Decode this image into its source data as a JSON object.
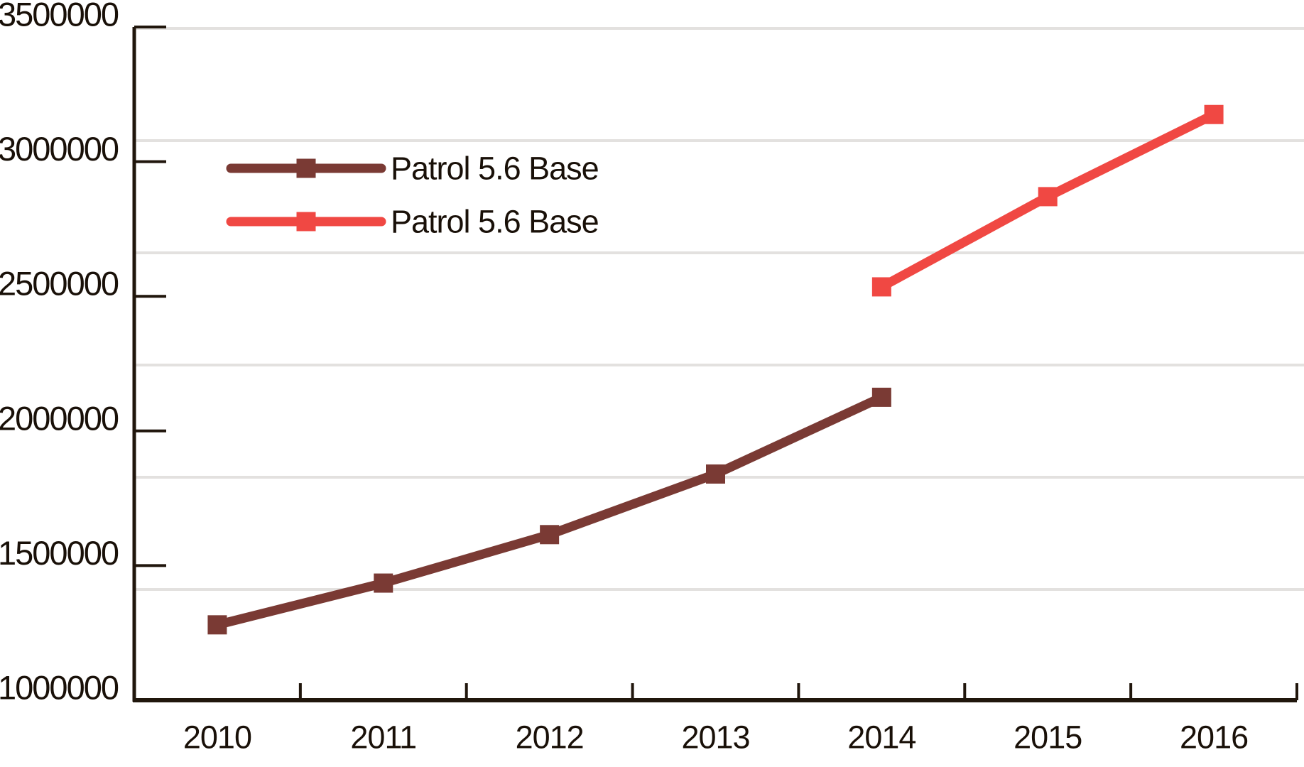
{
  "chart_data": {
    "type": "line",
    "title": "",
    "xlabel": "",
    "ylabel": "",
    "categories": [
      "2010",
      "2011",
      "2012",
      "2013",
      "2014",
      "2015",
      "2016"
    ],
    "y_axis": {
      "min": 1000000,
      "max": 3500000,
      "tick_interval": 500000,
      "tick_labels": [
        "3500000",
        "3000000",
        "2500000",
        "2000000",
        "1500000",
        "1000000"
      ]
    },
    "grid": {
      "horizontal_divisions": 6,
      "color": "#e3e1df"
    },
    "axis_color": "#20160c",
    "x_tick_style": "category-boundaries",
    "series": [
      {
        "name": "Patrol 5.6 Base",
        "color": "#7a3a34",
        "marker": "square",
        "points": [
          {
            "x": "2010",
            "y": 1280000
          },
          {
            "x": "2011",
            "y": 1435000
          },
          {
            "x": "2012",
            "y": 1615000
          },
          {
            "x": "2013",
            "y": 1840000
          },
          {
            "x": "2014",
            "y": 2125000
          }
        ]
      },
      {
        "name": "Patrol 5.6 Base",
        "color": "#f04843",
        "marker": "square",
        "points": [
          {
            "x": "2014",
            "y": 2535000
          },
          {
            "x": "2015",
            "y": 2870000
          },
          {
            "x": "2016",
            "y": 3175000
          }
        ]
      }
    ],
    "legend": {
      "position": "upper-left",
      "entries": [
        "Patrol 5.6 Base",
        "Patrol 5.6 Base"
      ]
    }
  }
}
